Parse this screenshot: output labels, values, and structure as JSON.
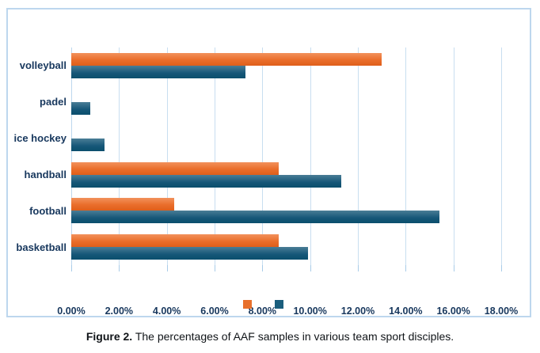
{
  "chart_data": {
    "type": "bar",
    "orientation": "horizontal",
    "title": "",
    "xlabel": "",
    "ylabel": "",
    "categories": [
      "volleyball",
      "padel",
      "ice hockey",
      "handball",
      "football",
      "basketball"
    ],
    "series": [
      {
        "name": "",
        "color_key": "orange",
        "values": [
          13.0,
          null,
          null,
          8.7,
          4.3,
          8.7
        ]
      },
      {
        "name": "",
        "color_key": "blue",
        "values": [
          7.3,
          0.8,
          1.4,
          11.3,
          15.4,
          9.9
        ]
      }
    ],
    "x_ticks": [
      "0.00%",
      "2.00%",
      "4.00%",
      "6.00%",
      "8.00%",
      "10.00%",
      "12.00%",
      "14.00%",
      "16.00%",
      "18.00%"
    ],
    "xlim": [
      0,
      18
    ],
    "grid": true,
    "legend_position": "bottom-center",
    "legend_labels": [
      "",
      ""
    ]
  },
  "colors": {
    "series_orange": "#E8702C",
    "series_blue": "#1A5E7D",
    "gridline": "#C8DEF0",
    "chart_border": "#BDD7EE",
    "axis_text": "#17375D"
  },
  "caption": {
    "label": "Figure 2.",
    "text": " The percentages of AAF samples in various team sport disciples."
  }
}
